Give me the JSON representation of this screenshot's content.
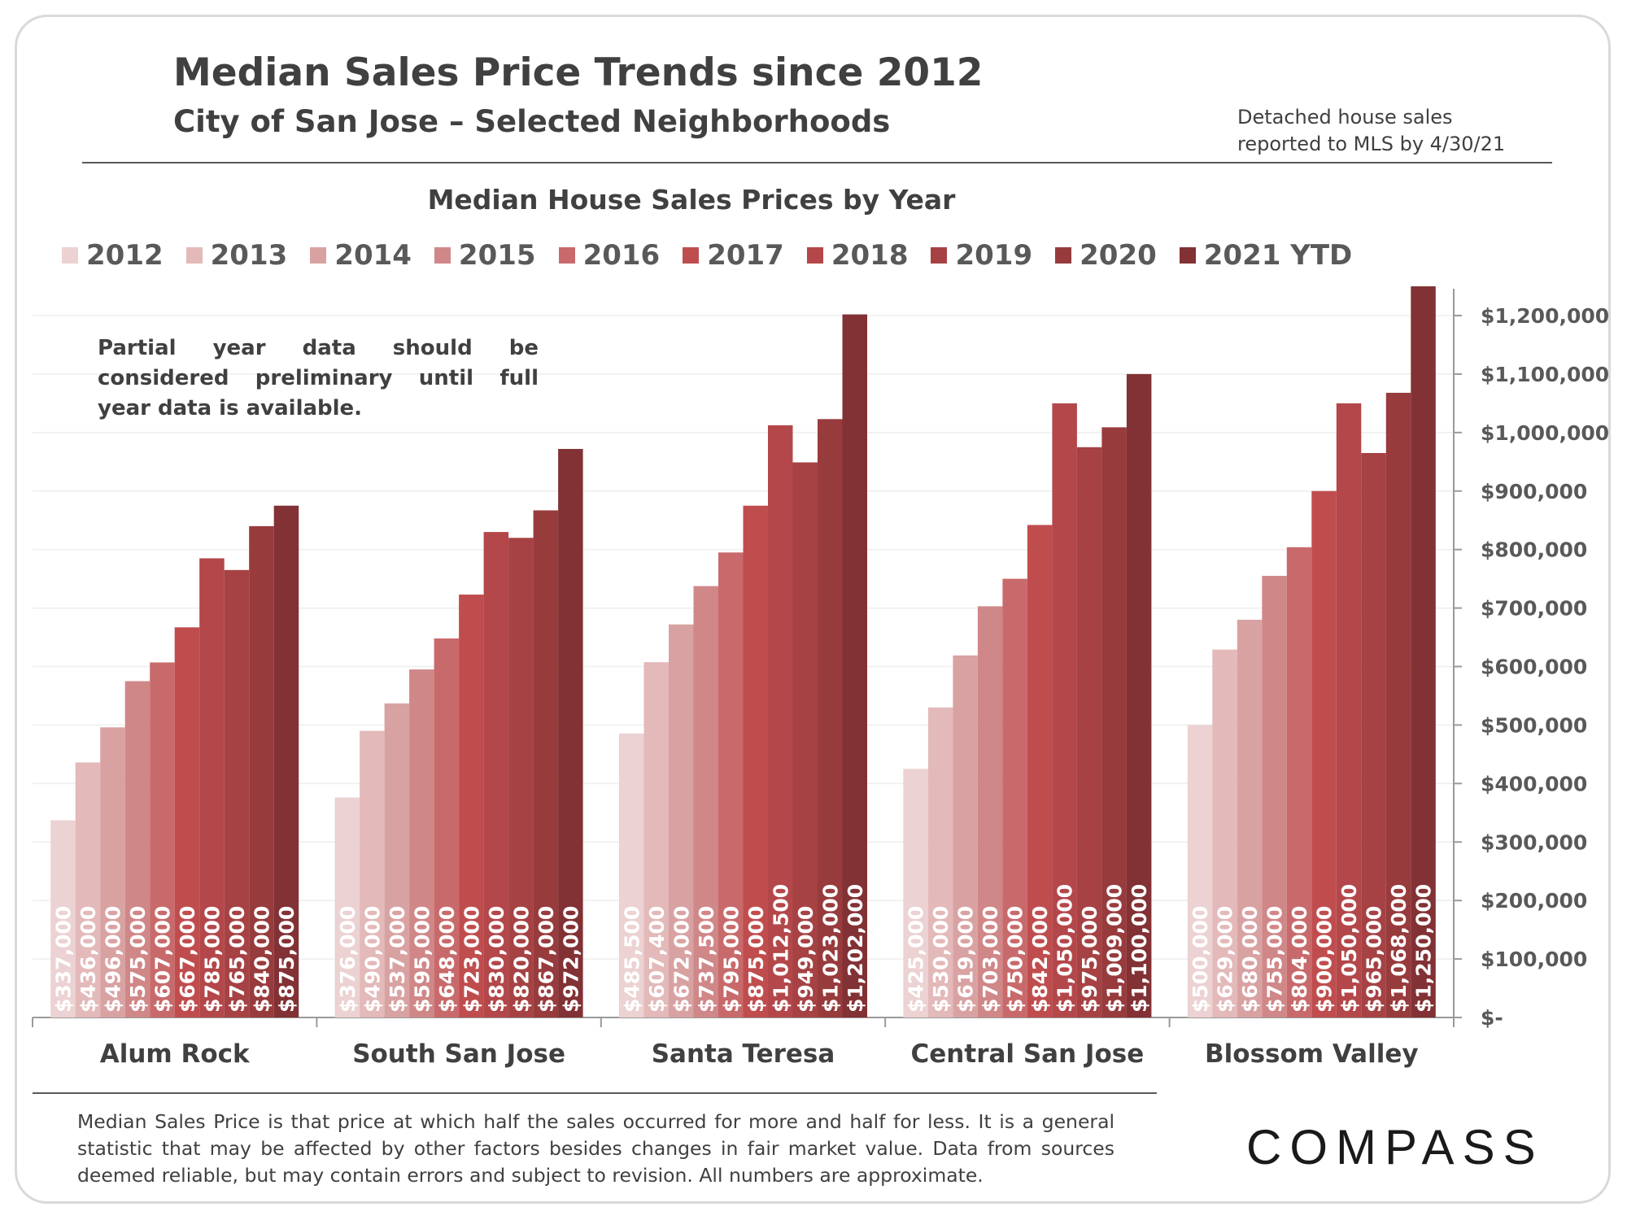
{
  "header": {
    "title": "Median Sales Price Trends since 2012",
    "subtitle": "City of San Jose – Selected Neighborhoods",
    "note_line1": "Detached house sales",
    "note_line2": "reported to MLS by 4/30/21"
  },
  "partial_note": "Partial year data should be considered preliminary until full year data is available.",
  "footnote": "Median Sales Price is that price at which half the sales occurred for more and half for less. It is a general statistic that may be affected by other factors besides changes in fair market value. Data from sources deemed reliable, but may contain errors and subject to revision.  All numbers are approximate.",
  "logo_text": "COMPASS",
  "chart_data": {
    "type": "bar",
    "title": "Median House Sales Prices by Year",
    "categories": [
      "Alum Rock",
      "South San Jose",
      "Santa Teresa",
      "Central San Jose",
      "Blossom Valley"
    ],
    "ylim": [
      0,
      1200000
    ],
    "yticks": [
      0,
      100000,
      200000,
      300000,
      400000,
      500000,
      600000,
      700000,
      800000,
      900000,
      1000000,
      1100000,
      1200000
    ],
    "ytick_labels": [
      "$-",
      "$100,000",
      "$200,000",
      "$300,000",
      "$400,000",
      "$500,000",
      "$600,000",
      "$700,000",
      "$800,000",
      "$900,000",
      "$1,000,000",
      "$1,100,000",
      "$1,200,000"
    ],
    "y_axis_side": "right",
    "grid": true,
    "legend_position": "top",
    "series": [
      {
        "name": "2012",
        "color": "#ecd2d2",
        "values": [
          337000,
          376000,
          485500,
          425000,
          500000
        ],
        "labels": [
          "$337,000",
          "$376,000",
          "$485,500",
          "$425,000",
          "$500,000"
        ]
      },
      {
        "name": "2013",
        "color": "#e3b9b9",
        "values": [
          436000,
          490000,
          607400,
          530000,
          629000
        ],
        "labels": [
          "$436,000",
          "$490,000",
          "$607,400",
          "$530,000",
          "$629,000"
        ]
      },
      {
        "name": "2014",
        "color": "#d9a2a2",
        "values": [
          496000,
          537000,
          672000,
          619000,
          680000
        ],
        "labels": [
          "$496,000",
          "$537,000",
          "$672,000",
          "$619,000",
          "$680,000"
        ]
      },
      {
        "name": "2015",
        "color": "#d08788",
        "values": [
          575000,
          595000,
          737500,
          703000,
          755000
        ],
        "labels": [
          "$575,000",
          "$595,000",
          "$737,500",
          "$703,000",
          "$755,000"
        ]
      },
      {
        "name": "2016",
        "color": "#c86a6b",
        "values": [
          607000,
          648000,
          795000,
          750000,
          804000
        ],
        "labels": [
          "$607,000",
          "$648,000",
          "$795,000",
          "$750,000",
          "$804,000"
        ]
      },
      {
        "name": "2017",
        "color": "#c04d4e",
        "values": [
          667000,
          723000,
          875000,
          842000,
          900000
        ],
        "labels": [
          "$667,000",
          "$723,000",
          "$875,000",
          "$842,000",
          "$900,000"
        ]
      },
      {
        "name": "2018",
        "color": "#b3474a",
        "values": [
          785000,
          830000,
          1012500,
          1050000,
          1050000
        ],
        "labels": [
          "$785,000",
          "$830,000",
          "$1,012,500",
          "$1,050,000",
          "$1,050,000"
        ]
      },
      {
        "name": "2019",
        "color": "#a64244",
        "values": [
          765000,
          820000,
          949000,
          975000,
          965000
        ],
        "labels": [
          "$765,000",
          "$820,000",
          "$949,000",
          "$975,000",
          "$965,000"
        ]
      },
      {
        "name": "2020",
        "color": "#983b3d",
        "values": [
          840000,
          867000,
          1023000,
          1009000,
          1068000
        ],
        "labels": [
          "$840,000",
          "$867,000",
          "$1,023,000",
          "$1,009,000",
          "$1,068,000"
        ]
      },
      {
        "name": "2021 YTD",
        "color": "#823134",
        "values": [
          875000,
          972000,
          1202000,
          1100000,
          1250000
        ],
        "labels": [
          "$875,000",
          "$972,000",
          "$1,202,000",
          "$1,100,000",
          "$1,250,000"
        ]
      }
    ]
  }
}
